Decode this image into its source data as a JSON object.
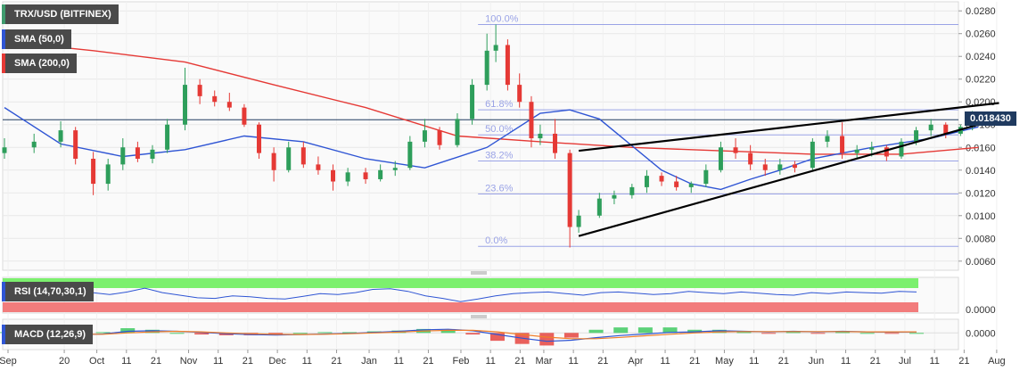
{
  "legend": {
    "main": "TRX/USD (BITFINEX)",
    "sma50": "SMA (50,0)",
    "sma200": "SMA (200,0)",
    "rsi": "RSI (14,70,30,1)",
    "macd": "MACD (12,26,9)"
  },
  "last_price": "0.018430",
  "colors": {
    "up": "#2e9e5b",
    "down": "#e53935",
    "sma50": "#2f55d4",
    "sma200": "#e53935",
    "trendline": "#000000",
    "fib": "#9aa3e6",
    "rsi_line": "#2f55d4",
    "rsi_over": "#7cf06e",
    "rsi_under": "#f27c7c",
    "macd_line": "#2f55d4",
    "signal_line": "#f07f2a",
    "price_tag_bg": "#1f3a5f",
    "legend_bg": "#4a4a4a"
  },
  "chart_data": [
    {
      "type": "candlestick",
      "title": "TRX/USD (BITFINEX)",
      "x_tick_labels": [
        "Sep",
        "20",
        "Oct",
        "11",
        "21",
        "Nov",
        "11",
        "21",
        "Dec",
        "11",
        "21",
        "Jan",
        "11",
        "21",
        "Feb",
        "11",
        "21",
        "Mar",
        "11",
        "21",
        "Apr",
        "11",
        "21",
        "May",
        "11",
        "21",
        "Jun",
        "11",
        "21",
        "Jul",
        "11",
        "21",
        "Aug"
      ],
      "y_tick_labels": [
        "0.0280",
        "0.0260",
        "0.0240",
        "0.0220",
        "0.0200",
        "0.0180",
        "0.0160",
        "0.0140",
        "0.0120",
        "0.0100",
        "0.0080",
        "0.0060"
      ],
      "ylim": [
        0.0052,
        0.0288
      ],
      "series": [
        {
          "name": "SMA (50,0)",
          "points": [
            [
              "Sep 1",
              0.0195
            ],
            [
              "Sep 20",
              0.0163
            ],
            [
              "Oct 11",
              0.0152
            ],
            [
              "Nov 1",
              0.0158
            ],
            [
              "Nov 21",
              0.017
            ],
            [
              "Dec 11",
              0.0165
            ],
            [
              "Jan 1",
              0.015
            ],
            [
              "Jan 21",
              0.0142
            ],
            [
              "Feb 11",
              0.016
            ],
            [
              "Mar 1",
              0.019
            ],
            [
              "Mar 11",
              0.0193
            ],
            [
              "Mar 21",
              0.0185
            ],
            [
              "Apr 11",
              0.014
            ],
            [
              "Apr 21",
              0.0128
            ],
            [
              "May 1",
              0.0123
            ],
            [
              "May 11",
              0.0132
            ],
            [
              "May 21",
              0.014
            ],
            [
              "Jun 1",
              0.015
            ],
            [
              "Jun 21",
              0.016
            ],
            [
              "Jul 11",
              0.0168
            ],
            [
              "Jul 27",
              0.0178
            ]
          ]
        },
        {
          "name": "SMA (200,0)",
          "points": [
            [
              "Sep 1",
              0.0253
            ],
            [
              "Oct 1",
              0.0245
            ],
            [
              "Nov 1",
              0.0235
            ],
            [
              "Dec 1",
              0.0215
            ],
            [
              "Jan 1",
              0.0195
            ],
            [
              "Feb 1",
              0.017
            ],
            [
              "Mar 1",
              0.0165
            ],
            [
              "Apr 1",
              0.016
            ],
            [
              "May 1",
              0.0157
            ],
            [
              "Jun 1",
              0.0154
            ],
            [
              "Jul 1",
              0.0154
            ],
            [
              "Jul 27",
              0.016
            ]
          ]
        }
      ],
      "candles": [
        [
          "Sep 1",
          0.0155,
          0.0168,
          0.015,
          0.016
        ],
        [
          "Sep 11",
          0.016,
          0.0172,
          0.0155,
          0.0165
        ],
        [
          "Sep 20",
          0.0165,
          0.0183,
          0.016,
          0.0175
        ],
        [
          "Sep 25",
          0.0175,
          0.0178,
          0.0145,
          0.015
        ],
        [
          "Oct 1",
          0.015,
          0.0156,
          0.0118,
          0.0128
        ],
        [
          "Oct 6",
          0.0128,
          0.015,
          0.0122,
          0.0145
        ],
        [
          "Oct 11",
          0.0145,
          0.0168,
          0.014,
          0.016
        ],
        [
          "Oct 16",
          0.016,
          0.0165,
          0.0147,
          0.015
        ],
        [
          "Oct 21",
          0.015,
          0.0162,
          0.0146,
          0.0158
        ],
        [
          "Oct 26",
          0.0158,
          0.0185,
          0.0155,
          0.018
        ],
        [
          "Nov 1",
          0.018,
          0.023,
          0.0175,
          0.0215
        ],
        [
          "Nov 6",
          0.0215,
          0.022,
          0.0198,
          0.0205
        ],
        [
          "Nov 11",
          0.0205,
          0.021,
          0.0196,
          0.02
        ],
        [
          "Nov 16",
          0.02,
          0.0208,
          0.0192,
          0.0195
        ],
        [
          "Nov 21",
          0.0195,
          0.0198,
          0.0178,
          0.018
        ],
        [
          "Nov 26",
          0.018,
          0.0182,
          0.015,
          0.0155
        ],
        [
          "Dec 1",
          0.0155,
          0.016,
          0.013,
          0.014
        ],
        [
          "Dec 6",
          0.014,
          0.0165,
          0.0138,
          0.016
        ],
        [
          "Dec 11",
          0.016,
          0.0165,
          0.0142,
          0.0145
        ],
        [
          "Dec 16",
          0.0145,
          0.0152,
          0.0136,
          0.014
        ],
        [
          "Dec 21",
          0.014,
          0.0145,
          0.0122,
          0.013
        ],
        [
          "Dec 26",
          0.013,
          0.0142,
          0.0126,
          0.0138
        ],
        [
          "Jan 1",
          0.0138,
          0.0142,
          0.0128,
          0.0132
        ],
        [
          "Jan 6",
          0.0132,
          0.0145,
          0.013,
          0.014
        ],
        [
          "Jan 11",
          0.014,
          0.0148,
          0.0135,
          0.0142
        ],
        [
          "Jan 16",
          0.0142,
          0.017,
          0.014,
          0.0165
        ],
        [
          "Jan 21",
          0.0165,
          0.0185,
          0.016,
          0.0175
        ],
        [
          "Jan 26",
          0.0175,
          0.0178,
          0.0158,
          0.0162
        ],
        [
          "Feb 1",
          0.0162,
          0.019,
          0.016,
          0.0185
        ],
        [
          "Feb 6",
          0.0185,
          0.022,
          0.018,
          0.0215
        ],
        [
          "Feb 11",
          0.0215,
          0.026,
          0.021,
          0.0245
        ],
        [
          "Feb 14",
          0.0245,
          0.0268,
          0.0235,
          0.025
        ],
        [
          "Feb 18",
          0.025,
          0.0255,
          0.021,
          0.0215
        ],
        [
          "Feb 22",
          0.0215,
          0.0225,
          0.0195,
          0.02
        ],
        [
          "Feb 26",
          0.02,
          0.0205,
          0.016,
          0.0168
        ],
        [
          "Mar 1",
          0.0168,
          0.018,
          0.0162,
          0.0172
        ],
        [
          "Mar 6",
          0.0172,
          0.0185,
          0.015,
          0.0155
        ],
        [
          "Mar 11",
          0.0155,
          0.0158,
          0.0072,
          0.009
        ],
        [
          "Mar 14",
          0.009,
          0.0105,
          0.0085,
          0.01
        ],
        [
          "Mar 21",
          0.01,
          0.012,
          0.0098,
          0.0115
        ],
        [
          "Mar 26",
          0.0115,
          0.0122,
          0.011,
          0.0118
        ],
        [
          "Apr 1",
          0.0118,
          0.0128,
          0.0115,
          0.0125
        ],
        [
          "Apr 6",
          0.0125,
          0.014,
          0.012,
          0.0135
        ],
        [
          "Apr 11",
          0.0135,
          0.0138,
          0.0126,
          0.013
        ],
        [
          "Apr 16",
          0.013,
          0.0135,
          0.0122,
          0.0125
        ],
        [
          "Apr 21",
          0.0125,
          0.013,
          0.012,
          0.0128
        ],
        [
          "Apr 26",
          0.0128,
          0.0145,
          0.0125,
          0.014
        ],
        [
          "May 1",
          0.014,
          0.0165,
          0.0138,
          0.016
        ],
        [
          "May 6",
          0.016,
          0.0168,
          0.015,
          0.0155
        ],
        [
          "May 11",
          0.0155,
          0.0162,
          0.014,
          0.0145
        ],
        [
          "May 16",
          0.0145,
          0.015,
          0.0135,
          0.014
        ],
        [
          "May 21",
          0.014,
          0.015,
          0.0136,
          0.0145
        ],
        [
          "May 26",
          0.0145,
          0.0148,
          0.0138,
          0.0142
        ],
        [
          "Jun 1",
          0.0142,
          0.0168,
          0.014,
          0.0165
        ],
        [
          "Jun 6",
          0.0165,
          0.0175,
          0.016,
          0.017
        ],
        [
          "Jun 11",
          0.017,
          0.0182,
          0.015,
          0.0155
        ],
        [
          "Jun 16",
          0.0155,
          0.0162,
          0.015,
          0.0158
        ],
        [
          "Jun 21",
          0.0158,
          0.0165,
          0.0152,
          0.016
        ],
        [
          "Jun 26",
          0.016,
          0.0162,
          0.0148,
          0.0152
        ],
        [
          "Jul 1",
          0.0152,
          0.0168,
          0.015,
          0.0165
        ],
        [
          "Jul 6",
          0.0165,
          0.0178,
          0.0162,
          0.0175
        ],
        [
          "Jul 11",
          0.0175,
          0.0185,
          0.017,
          0.018
        ],
        [
          "Jul 16",
          0.018,
          0.0182,
          0.0168,
          0.0172
        ],
        [
          "Jul 21",
          0.0172,
          0.018,
          0.017,
          0.0178
        ],
        [
          "Jul 25",
          0.0178,
          0.0192,
          0.0175,
          0.0186
        ],
        [
          "Jul 27",
          0.0186,
          0.019,
          0.0182,
          0.0184
        ]
      ],
      "fibonacci": [
        {
          "label": "100.0%",
          "value": 0.0268
        },
        {
          "label": "61.8%",
          "value": 0.0193
        },
        {
          "label": "50.0%",
          "value": 0.0171
        },
        {
          "label": "38.2%",
          "value": 0.0148
        },
        {
          "label": "23.6%",
          "value": 0.0119
        },
        {
          "label": "0.0%",
          "value": 0.0073
        }
      ],
      "trendlines": [
        {
          "from": [
            "Mar 14",
            0.0157
          ],
          "to": [
            "Aug 3",
            0.0199
          ]
        },
        {
          "from": [
            "Mar 14",
            0.0082
          ],
          "to": [
            "Aug 3",
            0.0185
          ]
        }
      ],
      "horizontal_line": 0.01843,
      "last_price": 0.01843
    },
    {
      "type": "line",
      "title": "RSI (14,70,30,1)",
      "y_tick_labels": [
        "0.0000"
      ],
      "series": [
        {
          "name": "RSI (14,70,30,1)",
          "values": [
            62,
            55,
            48,
            38,
            45,
            58,
            52,
            60,
            72,
            58,
            50,
            42,
            40,
            48,
            45,
            40,
            38,
            46,
            55,
            52,
            58,
            68,
            70,
            62,
            48,
            40,
            30,
            38,
            48,
            55,
            58,
            60,
            55,
            50,
            58,
            60,
            56,
            52,
            55,
            62,
            58,
            55,
            60,
            56,
            52,
            50,
            58,
            55,
            60,
            58,
            56,
            62,
            60
          ]
        }
      ]
    },
    {
      "type": "line",
      "title": "MACD (12,26,9)",
      "y_tick_labels": [
        "0.0000"
      ],
      "series": [
        {
          "name": "MACD",
          "values": [
            0.0002,
            0.0,
            -0.0006,
            -0.0008,
            -0.0004,
            0.0006,
            0.0008,
            0.0006,
            0.0002,
            -0.0003,
            -0.0006,
            -0.0008,
            -0.0006,
            -0.0004,
            -0.0002,
            0.0002,
            0.0006,
            0.0012,
            0.0014,
            0.0008,
            -0.0006,
            -0.002,
            -0.0032,
            -0.0028,
            -0.0018,
            -0.001,
            -0.0004,
            0.0002,
            0.0004,
            0.0008,
            0.0006,
            0.0004,
            0.0006,
            0.0004,
            0.0006,
            0.0004,
            0.0003,
            0.0004
          ]
        },
        {
          "name": "Signal",
          "values": [
            0.0001,
            0.0001,
            -0.0002,
            -0.0005,
            -0.0005,
            0.0,
            0.0004,
            0.0006,
            0.0004,
            0.0,
            -0.0003,
            -0.0005,
            -0.0006,
            -0.0005,
            -0.0003,
            0.0,
            0.0003,
            0.0007,
            0.001,
            0.001,
            0.0004,
            -0.0006,
            -0.0016,
            -0.0022,
            -0.0022,
            -0.0017,
            -0.0011,
            -0.0005,
            0.0,
            0.0004,
            0.0005,
            0.0005,
            0.0005,
            0.0005,
            0.0005,
            0.0004,
            0.0004,
            0.0004
          ]
        }
      ]
    }
  ]
}
